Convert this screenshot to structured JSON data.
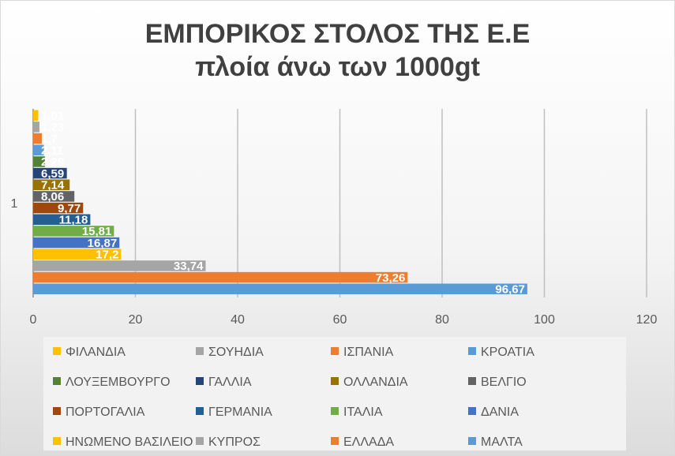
{
  "chart_data": {
    "type": "bar",
    "orientation": "horizontal",
    "title_lines": [
      "ΕΜΠΟΡΙΚΟΣ ΣΤΟΛΟΣ ΤΗΣ Ε.Ε",
      "πλοία άνω των 1000gt"
    ],
    "category_label": "1",
    "xlim": [
      0,
      120
    ],
    "x_ticks": [
      0,
      20,
      40,
      60,
      80,
      100,
      120
    ],
    "grid": true,
    "legend_position": "bottom",
    "series": [
      {
        "name": "ΦΙΛΑΝΔΙΑ",
        "value": 1.01,
        "label": "1,01",
        "color": "#ffc000"
      },
      {
        "name": "ΣΟΥΗΔΙΑ",
        "value": 1.23,
        "label": "1,23",
        "color": "#a5a5a5"
      },
      {
        "name": "ΙΣΠΑΝΙΑ",
        "value": 1.7,
        "label": "1,7",
        "color": "#ed7d31"
      },
      {
        "name": "ΚΡΟΑΤΙΑ",
        "value": 2.11,
        "label": "2,11",
        "color": "#5b9bd5"
      },
      {
        "name": "ΛΟΥΞΕΜΒΟΥΡΓΟ",
        "value": 2.29,
        "label": "2,29",
        "color": "#548235"
      },
      {
        "name": "ΓΑΛΛΙΑ",
        "value": 6.59,
        "label": "6,59",
        "color": "#264478"
      },
      {
        "name": "ΟΛΛΑΝΔΙΑ",
        "value": 7.14,
        "label": "7,14",
        "color": "#997300"
      },
      {
        "name": "ΒΕΛΓΙΟ",
        "value": 8.06,
        "label": "8,06",
        "color": "#636363"
      },
      {
        "name": "ΠΟΡΤΟΓΑΛΙΑ",
        "value": 9.77,
        "label": "9,77",
        "color": "#9e480e"
      },
      {
        "name": "ΓΕΡΜΑΝΙΑ",
        "value": 11.18,
        "label": "11,18",
        "color": "#255e91"
      },
      {
        "name": "ΙΤΑΛΙΑ",
        "value": 15.81,
        "label": "15,81",
        "color": "#70ad47"
      },
      {
        "name": "ΔΑΝΙΑ",
        "value": 16.87,
        "label": "16,87",
        "color": "#4472c4"
      },
      {
        "name": "ΗΝΩΜΕΝΟ ΒΑΣΙΛΕΙΟ",
        "value": 17.2,
        "label": "17,2",
        "color": "#ffc000"
      },
      {
        "name": "ΚΥΠΡΟΣ",
        "value": 33.74,
        "label": "33,74",
        "color": "#a5a5a5"
      },
      {
        "name": "ΕΛΛΑΔΑ",
        "value": 73.26,
        "label": "73,26",
        "color": "#ed7d31"
      },
      {
        "name": "ΜΑΛΤΑ",
        "value": 96.67,
        "label": "96,67",
        "color": "#5b9bd5"
      }
    ]
  }
}
